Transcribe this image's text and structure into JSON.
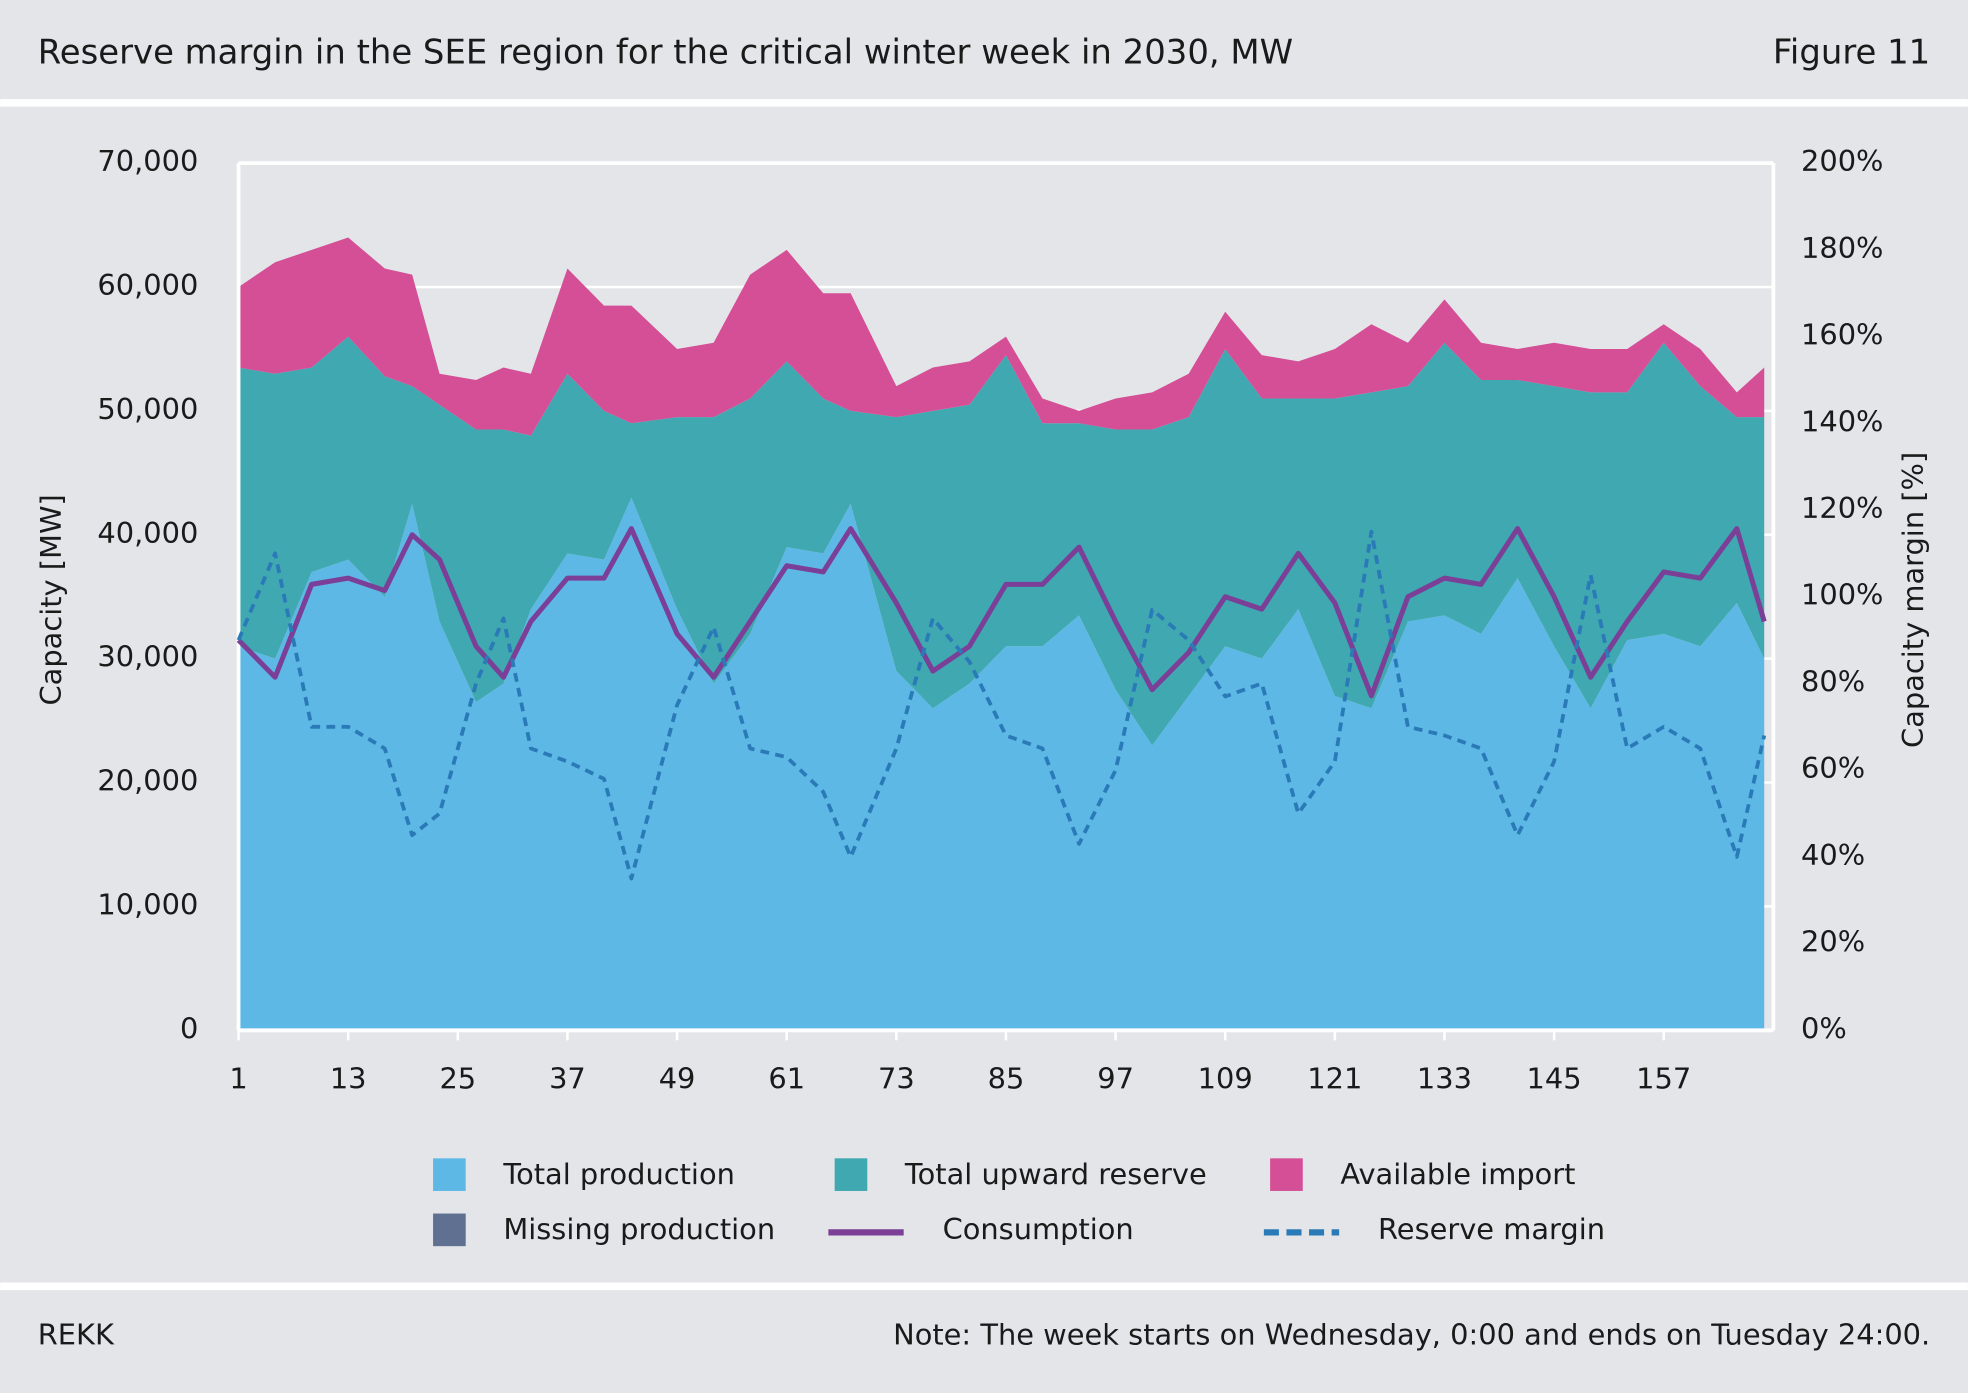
{
  "header": {
    "title": "Reserve margin in the SEE region for the critical winter week in 2030, MW",
    "figure": "Figure 11"
  },
  "footer": {
    "source": "REKK",
    "note": "Note: The week starts on Wednesday, 0:00 and ends on Tuesday 24:00."
  },
  "chart_data": {
    "type": "area",
    "stacked": true,
    "y_label": "Capacity [MW]",
    "y2_label": "Capacity margin [%]",
    "x": [
      1,
      5,
      9,
      13,
      17,
      20,
      23,
      27,
      30,
      33,
      37,
      41,
      44,
      49,
      53,
      57,
      61,
      65,
      68,
      73,
      77,
      81,
      85,
      89,
      93,
      97,
      101,
      105,
      109,
      113,
      117,
      121,
      125,
      129,
      133,
      137,
      141,
      145,
      149,
      153,
      157,
      161,
      165,
      168
    ],
    "xlim": [
      1,
      169
    ],
    "xticks": [
      1,
      13,
      25,
      37,
      49,
      61,
      73,
      85,
      97,
      109,
      121,
      133,
      145,
      157
    ],
    "ylim": [
      0,
      70000
    ],
    "yticks": [
      {
        "value": 0,
        "label": "0"
      },
      {
        "value": 10000,
        "label": "10,000"
      },
      {
        "value": 20000,
        "label": "20,000"
      },
      {
        "value": 30000,
        "label": "30,000"
      },
      {
        "value": 40000,
        "label": "40,000"
      },
      {
        "value": 50000,
        "label": "50,000"
      },
      {
        "value": 60000,
        "label": "60,000"
      },
      {
        "value": 70000,
        "label": "70,000"
      }
    ],
    "y2lim": [
      0,
      200
    ],
    "y2ticks": [
      {
        "value": 0,
        "label": "0%"
      },
      {
        "value": 20,
        "label": "20%"
      },
      {
        "value": 40,
        "label": "40%"
      },
      {
        "value": 60,
        "label": "60%"
      },
      {
        "value": 80,
        "label": "80%"
      },
      {
        "value": 100,
        "label": "100%"
      },
      {
        "value": 120,
        "label": "120%"
      },
      {
        "value": 140,
        "label": "140%"
      },
      {
        "value": 160,
        "label": "160%"
      },
      {
        "value": 180,
        "label": "180%"
      },
      {
        "value": 200,
        "label": "200%"
      }
    ],
    "grid": true,
    "series": [
      {
        "name": "Total production",
        "type": "area",
        "color": "#5eb8e6",
        "values": [
          31000,
          30000,
          37000,
          38000,
          35000,
          42500,
          33000,
          26500,
          28000,
          34000,
          38500,
          38000,
          43000,
          34000,
          28000,
          32000,
          39000,
          38500,
          42500,
          29000,
          26000,
          28000,
          31000,
          31000,
          33500,
          27500,
          23000,
          27000,
          31000,
          30000,
          34000,
          27000,
          26000,
          33000,
          33500,
          32000,
          36500,
          31000,
          26000,
          31500,
          32000,
          31000,
          34500,
          30000
        ]
      },
      {
        "name": "Total upward reserve",
        "type": "area",
        "color": "#3fa8b0",
        "values": [
          22500,
          23000,
          16500,
          18000,
          17800,
          9500,
          17500,
          22000,
          20500,
          14000,
          14500,
          12000,
          6000,
          15500,
          21500,
          19000,
          15000,
          12500,
          7500,
          20500,
          24000,
          22500,
          23500,
          18000,
          15500,
          21000,
          25500,
          22500,
          24000,
          21000,
          17000,
          24000,
          25500,
          19000,
          22000,
          20500,
          16000,
          21000,
          25500,
          20000,
          23500,
          21000,
          15000,
          19500
        ]
      },
      {
        "name": "Available import",
        "type": "area",
        "color": "#d44f96",
        "values": [
          6500,
          9000,
          9500,
          8000,
          8700,
          9000,
          2500,
          4000,
          5000,
          5000,
          8500,
          8500,
          9500,
          5500,
          6000,
          10000,
          9000,
          8500,
          9500,
          2500,
          3500,
          3500,
          1500,
          2000,
          1000,
          2500,
          3000,
          3500,
          3000,
          3500,
          3000,
          4000,
          5500,
          3500,
          3500,
          3000,
          2500,
          3500,
          3500,
          3500,
          1500,
          3000,
          2000,
          4000
        ]
      },
      {
        "name": "Missing production",
        "type": "area",
        "color": "#5f7090",
        "values": [
          0,
          0,
          0,
          0,
          0,
          0,
          0,
          0,
          0,
          0,
          0,
          0,
          0,
          0,
          0,
          0,
          0,
          0,
          0,
          0,
          0,
          0,
          0,
          0,
          0,
          0,
          0,
          0,
          0,
          0,
          0,
          0,
          0,
          0,
          0,
          0,
          0,
          0,
          0,
          0,
          0,
          0,
          0,
          0
        ]
      },
      {
        "name": "Consumption",
        "type": "line",
        "color": "#7b3f98",
        "values": [
          31500,
          28500,
          36000,
          36500,
          35500,
          40000,
          38000,
          31000,
          28500,
          33000,
          36500,
          36500,
          40500,
          32000,
          28500,
          33000,
          37500,
          37000,
          40500,
          34500,
          29000,
          31000,
          36000,
          36000,
          39000,
          33000,
          27500,
          30500,
          35000,
          34000,
          38500,
          34500,
          27000,
          35000,
          36500,
          36000,
          40500,
          35000,
          28500,
          33000,
          37000,
          36500,
          40500,
          33000
        ]
      },
      {
        "name": "Reserve margin",
        "type": "line",
        "dashed": true,
        "axis": "y2",
        "color": "#2a7ab8",
        "values": [
          90,
          110,
          70,
          70,
          65,
          45,
          50,
          80,
          95,
          65,
          62,
          58,
          35,
          75,
          93,
          65,
          63,
          55,
          40,
          65,
          95,
          85,
          68,
          65,
          43,
          60,
          97,
          90,
          77,
          80,
          50,
          62,
          115,
          70,
          68,
          65,
          45,
          62,
          105,
          65,
          70,
          65,
          40,
          68
        ]
      }
    ]
  }
}
